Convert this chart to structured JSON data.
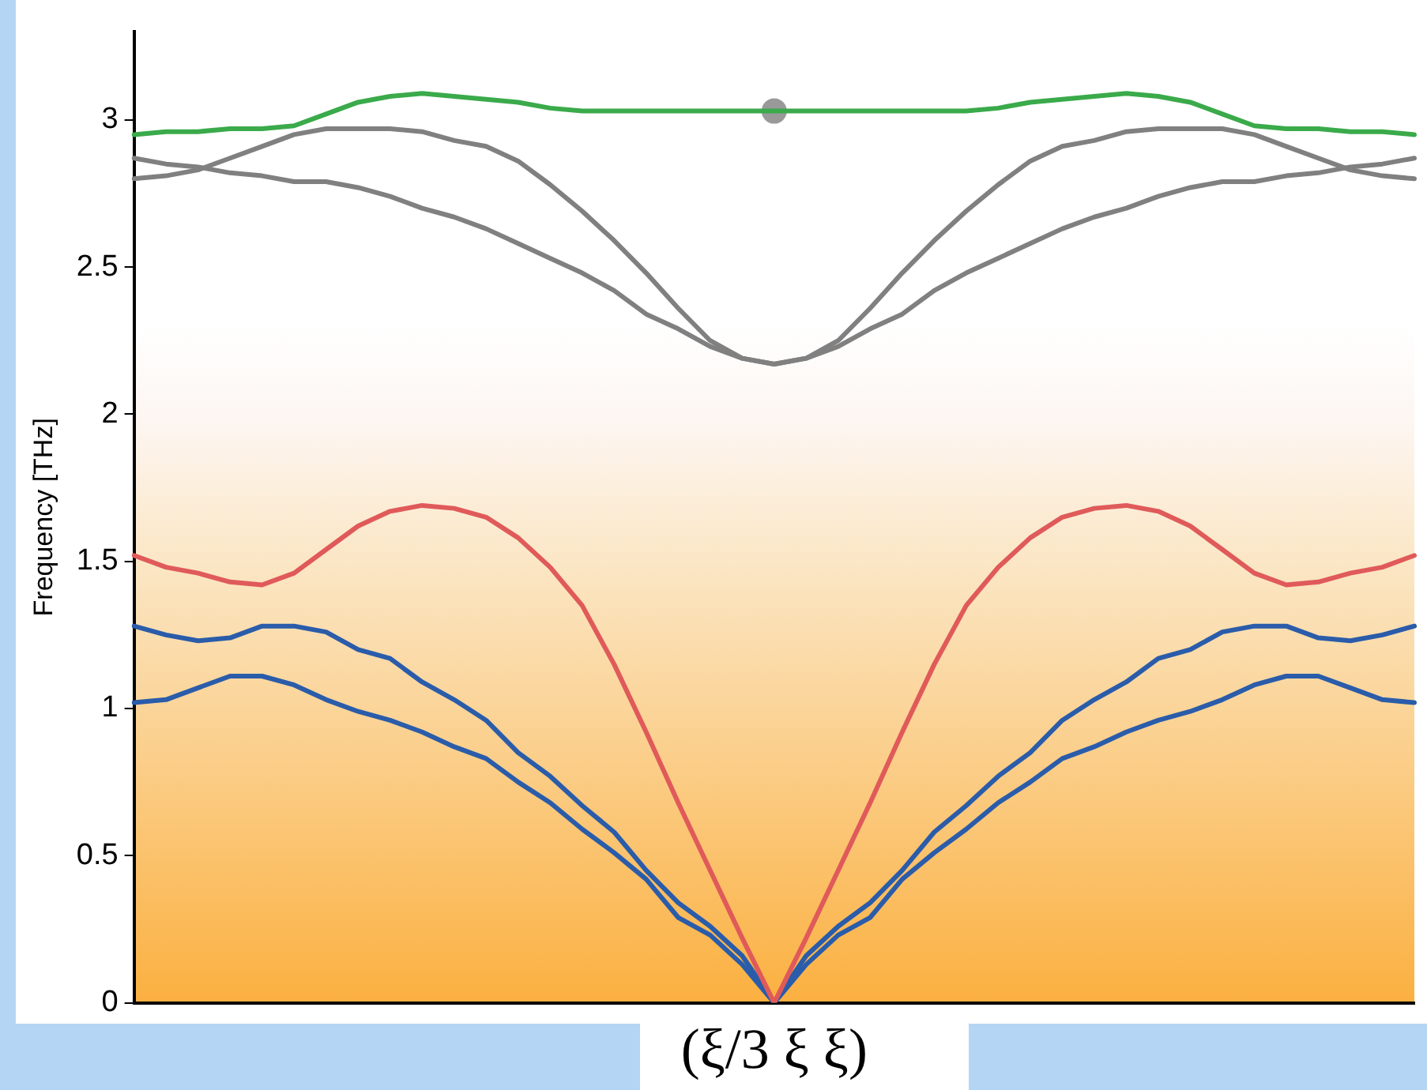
{
  "chart_data": {
    "type": "line",
    "xlabel": "(ξ/3 ξ ξ)",
    "ylabel": "Frequency [THz]",
    "categories": [
      null,
      null,
      null,
      null,
      null,
      null,
      null,
      null,
      null,
      null,
      null,
      null,
      null,
      null,
      null,
      null,
      null,
      null,
      null,
      null,
      null,
      null,
      null,
      null,
      null,
      null,
      null,
      null,
      null,
      null,
      null,
      null,
      null,
      null,
      null,
      null,
      null,
      null,
      null,
      null,
      null
    ],
    "ylim": [
      0,
      3.3
    ],
    "yticks": [
      0,
      0.5,
      1,
      1.5,
      2,
      2.5,
      3
    ],
    "grid": false,
    "legend": false,
    "tick_labels": "y",
    "marker": "none",
    "line_style": "solid",
    "series": [
      {
        "color": "#3aaa4a",
        "values": [
          2.95,
          2.96,
          2.96,
          2.97,
          2.97,
          2.98,
          3.02,
          3.06,
          3.08,
          3.09,
          3.08,
          3.07,
          3.06,
          3.04,
          3.03,
          3.03,
          3.03,
          3.03,
          3.03,
          3.03,
          3.03,
          3.03,
          3.03,
          3.03,
          3.03,
          3.03,
          3.03,
          3.04,
          3.06,
          3.07,
          3.08,
          3.09,
          3.08,
          3.06,
          3.02,
          2.98,
          2.97,
          2.97,
          2.96,
          2.96,
          2.95
        ]
      },
      {
        "color": "#808080",
        "values": [
          2.87,
          2.85,
          2.84,
          2.82,
          2.81,
          2.79,
          2.79,
          2.77,
          2.74,
          2.7,
          2.67,
          2.63,
          2.58,
          2.53,
          2.48,
          2.42,
          2.34,
          2.29,
          2.23,
          2.19,
          2.17,
          2.19,
          2.23,
          2.29,
          2.34,
          2.42,
          2.48,
          2.53,
          2.58,
          2.63,
          2.67,
          2.7,
          2.74,
          2.77,
          2.79,
          2.79,
          2.81,
          2.82,
          2.84,
          2.85,
          2.87
        ]
      },
      {
        "color": "#808080",
        "values": [
          2.8,
          2.81,
          2.83,
          2.87,
          2.91,
          2.95,
          2.97,
          2.97,
          2.97,
          2.96,
          2.93,
          2.91,
          2.86,
          2.78,
          2.69,
          2.59,
          2.48,
          2.36,
          2.25,
          2.19,
          2.17,
          2.19,
          2.25,
          2.36,
          2.48,
          2.59,
          2.69,
          2.78,
          2.86,
          2.91,
          2.93,
          2.96,
          2.97,
          2.97,
          2.97,
          2.95,
          2.91,
          2.87,
          2.83,
          2.81,
          2.8
        ]
      },
      {
        "color": "#e05a5a",
        "values": [
          1.52,
          1.48,
          1.46,
          1.43,
          1.42,
          1.46,
          1.54,
          1.62,
          1.67,
          1.69,
          1.68,
          1.65,
          1.58,
          1.48,
          1.35,
          1.15,
          0.92,
          0.68,
          0.45,
          0.22,
          0,
          0.22,
          0.45,
          0.68,
          0.92,
          1.15,
          1.35,
          1.48,
          1.58,
          1.65,
          1.68,
          1.69,
          1.67,
          1.62,
          1.54,
          1.46,
          1.42,
          1.43,
          1.46,
          1.48,
          1.52
        ]
      },
      {
        "color": "#2a5caa",
        "values": [
          1.28,
          1.25,
          1.23,
          1.24,
          1.28,
          1.28,
          1.26,
          1.2,
          1.17,
          1.09,
          1.03,
          0.96,
          0.85,
          0.77,
          0.67,
          0.58,
          0.45,
          0.34,
          0.26,
          0.16,
          0,
          0.16,
          0.26,
          0.34,
          0.45,
          0.58,
          0.67,
          0.77,
          0.85,
          0.96,
          1.03,
          1.09,
          1.17,
          1.2,
          1.26,
          1.28,
          1.28,
          1.24,
          1.23,
          1.25,
          1.28
        ]
      },
      {
        "color": "#2a5caa",
        "values": [
          1.02,
          1.03,
          1.07,
          1.11,
          1.11,
          1.08,
          1.03,
          0.99,
          0.96,
          0.92,
          0.87,
          0.83,
          0.75,
          0.68,
          0.59,
          0.51,
          0.42,
          0.29,
          0.23,
          0.13,
          0,
          0.13,
          0.23,
          0.29,
          0.42,
          0.51,
          0.59,
          0.68,
          0.75,
          0.83,
          0.87,
          0.92,
          0.96,
          0.99,
          1.03,
          1.08,
          1.11,
          1.11,
          1.07,
          1.03,
          1.02
        ]
      },
      {
        "type": "scatter",
        "color": "#999999",
        "marker": "circle",
        "values": [
          null,
          null,
          null,
          null,
          null,
          null,
          null,
          null,
          null,
          null,
          null,
          null,
          null,
          null,
          null,
          null,
          null,
          null,
          null,
          null,
          3.03,
          null,
          null,
          null,
          null,
          null,
          null,
          null,
          null,
          null,
          null,
          null,
          null,
          null,
          null,
          null,
          null,
          null,
          null,
          null,
          null
        ]
      }
    ]
  }
}
